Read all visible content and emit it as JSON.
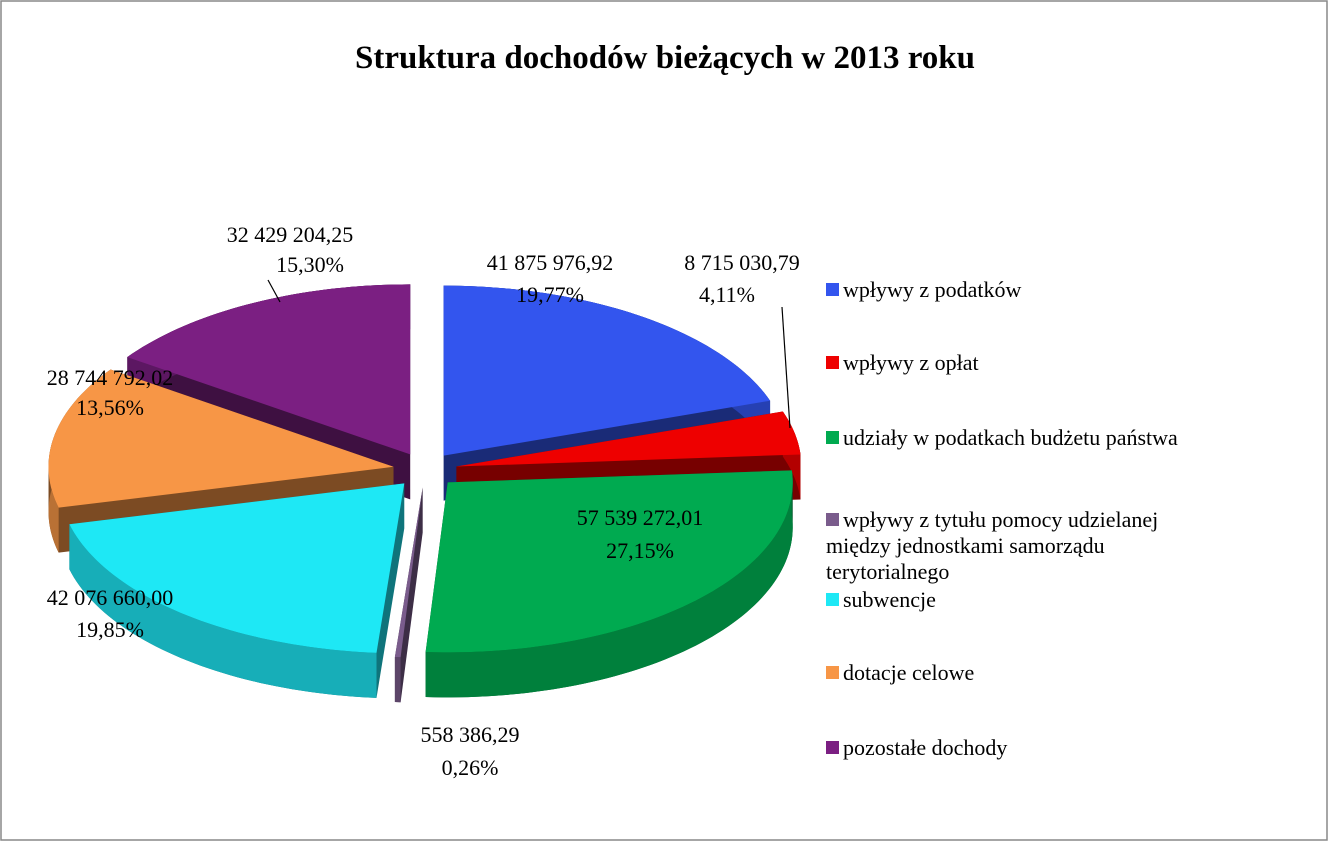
{
  "chart_data": {
    "type": "pie3d",
    "title": "Struktura dochodów bieżących w 2013 roku",
    "categories": [
      "wpływy z podatków",
      "wpływy z opłat",
      "udziały w podatkach budżetu państwa",
      "wpływy z tytułu pomocy udzielanej między jednostkami samorządu terytorialnego",
      "subwencje",
      "dotacje celowe",
      "pozostałe dochody"
    ],
    "values": [
      41875976.92,
      8715030.79,
      57539272.01,
      558386.29,
      42076660.0,
      28744792.02,
      32429204.25
    ],
    "value_labels": [
      "41 875 976,92",
      "8 715 030,79",
      "57 539 272,01",
      "558 386,29",
      "42 076 660,00",
      "28 744 792,02",
      "32 429 204,25"
    ],
    "percentages": [
      19.77,
      4.11,
      27.15,
      0.26,
      19.85,
      13.56,
      15.3
    ],
    "percentage_labels": [
      "19,77%",
      "4,11%",
      "27,15%",
      "0,26%",
      "19,85%",
      "13,56%",
      "15,30%"
    ],
    "colors": [
      "#3355ee",
      "#ee0000",
      "#00aa50",
      "#7a5c8c",
      "#1ee8f5",
      "#f79646",
      "#7b1f82"
    ],
    "legend": "right"
  }
}
